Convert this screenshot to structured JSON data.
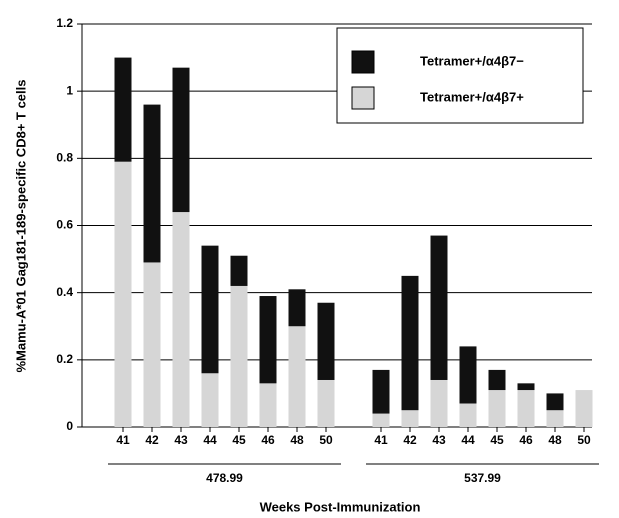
{
  "chart_data": {
    "type": "stacked_bar",
    "ylabel": "%Mamu-A*01 Gag181-189-specific CD8+ T cells",
    "xlabel": "Weeks Post-Immunization",
    "groups": [
      "478.99",
      "537.99"
    ],
    "categories": [
      "41",
      "42",
      "43",
      "44",
      "45",
      "46",
      "48",
      "50",
      "41",
      "42",
      "43",
      "44",
      "45",
      "46",
      "48",
      "50"
    ],
    "series": [
      {
        "name": "Tetramer+/α4β7+",
        "color": "#d6d6d6",
        "values": [
          0.79,
          0.49,
          0.64,
          0.16,
          0.42,
          0.13,
          0.3,
          0.14,
          0.04,
          0.05,
          0.14,
          0.07,
          0.11,
          0.11,
          0.05,
          0.11
        ]
      },
      {
        "name": "Tetramer+/α4β7−",
        "color": "#111111",
        "values": [
          0.31,
          0.47,
          0.43,
          0.38,
          0.09,
          0.26,
          0.11,
          0.23,
          0.13,
          0.4,
          0.43,
          0.17,
          0.06,
          0.02,
          0.05,
          0
        ]
      }
    ],
    "ylim": [
      0,
      1.2
    ],
    "yticks": [
      0,
      0.2,
      0.4,
      0.6,
      0.8,
      1,
      1.2
    ],
    "grid": true,
    "legend": "upper right"
  }
}
